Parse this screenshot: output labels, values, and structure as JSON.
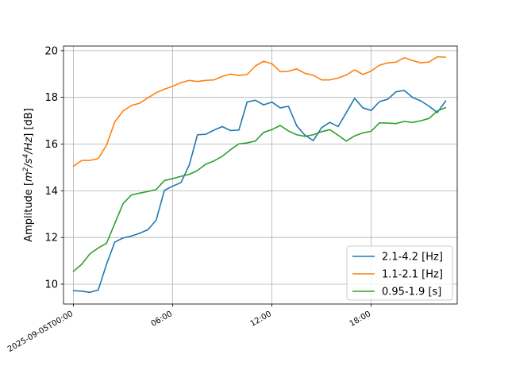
{
  "chart_data": {
    "type": "line",
    "title": "",
    "xlabel": "",
    "ylabel": "Amplitude [m²/s⁴/Hz] [dB]",
    "ylabel_parts": {
      "prefix": "Amplitude [",
      "m": "m",
      "sq": "2",
      "s": "/s",
      "quart": "4",
      "hz": "/Hz",
      "suffix": "] [dB]"
    },
    "x_start": "2025-09-05T00:00",
    "x_step_minutes": 30,
    "xlim_hours": [
      -0.6,
      23.2
    ],
    "ylim": [
      9.15,
      20.2
    ],
    "xticks": [
      {
        "hour": 0,
        "label": "2025-09-05T00:00"
      },
      {
        "hour": 6,
        "label": "06:00"
      },
      {
        "hour": 12,
        "label": "12:00"
      },
      {
        "hour": 18,
        "label": "18:00"
      }
    ],
    "yticks": [
      10,
      12,
      14,
      16,
      18,
      20
    ],
    "grid": true,
    "legend_position": "lower-right",
    "series": [
      {
        "name": "2.1-4.2 [Hz]",
        "color": "#1f77b4",
        "values": [
          9.72,
          9.7,
          9.65,
          9.75,
          10.85,
          11.8,
          11.98,
          12.06,
          12.18,
          12.33,
          12.74,
          14.02,
          14.2,
          14.35,
          15.1,
          16.4,
          16.42,
          16.6,
          16.75,
          16.58,
          16.6,
          17.8,
          17.88,
          17.68,
          17.8,
          17.55,
          17.62,
          16.78,
          16.38,
          16.15,
          16.7,
          16.93,
          16.75,
          17.35,
          17.96,
          17.55,
          17.44,
          17.82,
          17.92,
          18.24,
          18.3,
          18.0,
          17.85,
          17.62,
          17.35,
          17.85
        ]
      },
      {
        "name": "1.1-2.1 [Hz]",
        "color": "#ff7f0e",
        "values": [
          15.05,
          15.3,
          15.3,
          15.38,
          15.95,
          16.95,
          17.42,
          17.65,
          17.75,
          17.98,
          18.2,
          18.35,
          18.48,
          18.63,
          18.73,
          18.68,
          18.73,
          18.75,
          18.9,
          19.0,
          18.94,
          18.98,
          19.35,
          19.55,
          19.44,
          19.1,
          19.12,
          19.22,
          19.03,
          18.95,
          18.75,
          18.75,
          18.83,
          18.96,
          19.18,
          18.98,
          19.13,
          19.38,
          19.48,
          19.51,
          19.7,
          19.58,
          19.48,
          19.52,
          19.74,
          19.72
        ]
      },
      {
        "name": "0.95-1.9 [s]",
        "color": "#2ca02c",
        "values": [
          10.55,
          10.85,
          11.3,
          11.55,
          11.75,
          12.6,
          13.45,
          13.82,
          13.9,
          13.97,
          14.05,
          14.44,
          14.52,
          14.62,
          14.7,
          14.87,
          15.14,
          15.28,
          15.48,
          15.76,
          16.01,
          16.05,
          16.13,
          16.5,
          16.62,
          16.8,
          16.56,
          16.4,
          16.33,
          16.4,
          16.53,
          16.62,
          16.38,
          16.13,
          16.35,
          16.48,
          16.55,
          16.91,
          16.9,
          16.88,
          16.97,
          16.93,
          17.0,
          17.1,
          17.42,
          17.56
        ]
      }
    ]
  }
}
